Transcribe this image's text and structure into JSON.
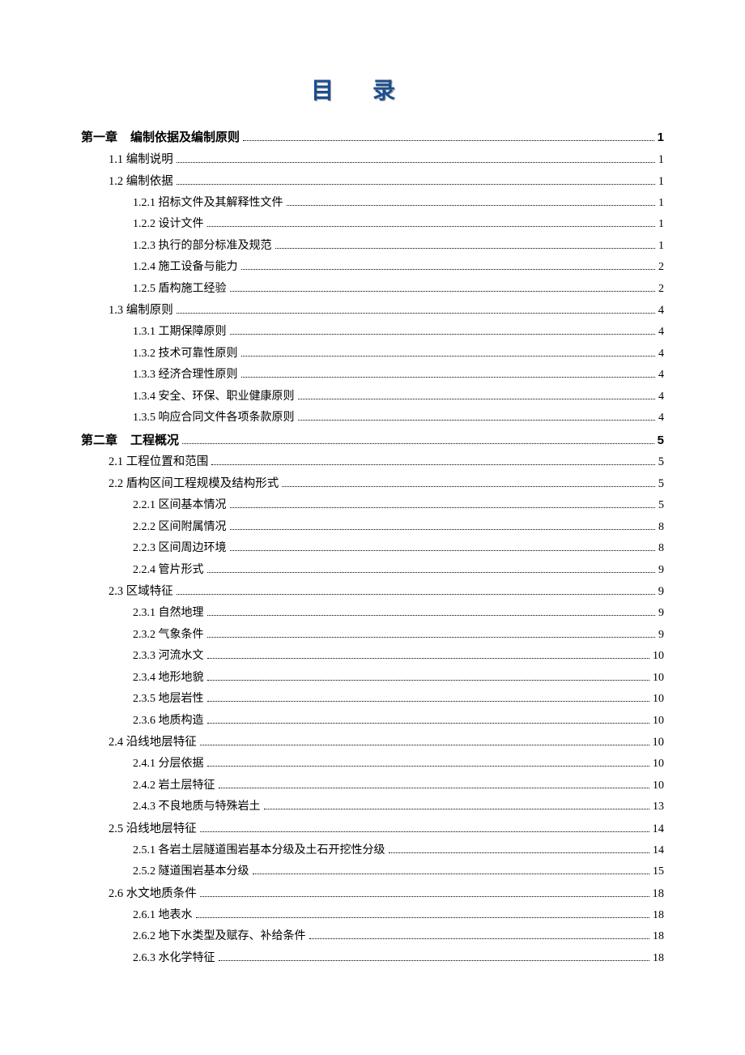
{
  "title": "目录",
  "title_color": "#1b4f8f",
  "title_shadow": "#a0a0a0",
  "colors": {
    "text": "#000000",
    "background": "#ffffff",
    "leader": "#000000"
  },
  "typography": {
    "title_fontsize": 28,
    "level1_fontsize": 15,
    "level2_fontsize": 14.5,
    "level3_fontsize": 14,
    "title_font": "SimHei",
    "body_font": "SimSun",
    "title_letter_spacing": 48
  },
  "layout": {
    "indent_level1": 0,
    "indent_level2": 34,
    "indent_level3": 64,
    "line_spacing": 12.5
  },
  "entries": [
    {
      "level": 1,
      "chapter": "第一章",
      "text": "编制依据及编制原则",
      "page": "1"
    },
    {
      "level": 2,
      "text": "1.1 编制说明",
      "page": "1"
    },
    {
      "level": 2,
      "text": "1.2 编制依据",
      "page": "1"
    },
    {
      "level": 3,
      "text": "1.2.1 招标文件及其解释性文件",
      "page": "1"
    },
    {
      "level": 3,
      "text": "1.2.2 设计文件",
      "page": "1"
    },
    {
      "level": 3,
      "text": "1.2.3 执行的部分标准及规范",
      "page": "1"
    },
    {
      "level": 3,
      "text": "1.2.4 施工设备与能力",
      "page": "2"
    },
    {
      "level": 3,
      "text": "1.2.5 盾构施工经验",
      "page": "2"
    },
    {
      "level": 2,
      "text": "1.3 编制原则",
      "page": "4"
    },
    {
      "level": 3,
      "text": "1.3.1 工期保障原则",
      "page": "4"
    },
    {
      "level": 3,
      "text": "1.3.2 技术可靠性原则",
      "page": "4"
    },
    {
      "level": 3,
      "text": "1.3.3 经济合理性原则",
      "page": "4"
    },
    {
      "level": 3,
      "text": "1.3.4 安全、环保、职业健康原则",
      "page": "4"
    },
    {
      "level": 3,
      "text": "1.3.5 响应合同文件各项条款原则",
      "page": "4"
    },
    {
      "level": 1,
      "chapter": "第二章",
      "text": "工程概况",
      "page": "5"
    },
    {
      "level": 2,
      "text": "2.1 工程位置和范围",
      "page": "5"
    },
    {
      "level": 2,
      "text": "2.2 盾构区间工程规模及结构形式",
      "page": "5"
    },
    {
      "level": 3,
      "text": "2.2.1 区间基本情况",
      "page": "5"
    },
    {
      "level": 3,
      "text": "2.2.2 区间附属情况",
      "page": "8"
    },
    {
      "level": 3,
      "text": "2.2.3 区间周边环境",
      "page": "8"
    },
    {
      "level": 3,
      "text": "2.2.4 管片形式",
      "page": "9"
    },
    {
      "level": 2,
      "text": "2.3 区域特征",
      "page": "9"
    },
    {
      "level": 3,
      "text": "2.3.1 自然地理",
      "page": "9"
    },
    {
      "level": 3,
      "text": "2.3.2 气象条件",
      "page": "9"
    },
    {
      "level": 3,
      "text": "2.3.3 河流水文",
      "page": "10"
    },
    {
      "level": 3,
      "text": "2.3.4 地形地貌",
      "page": "10"
    },
    {
      "level": 3,
      "text": "2.3.5 地层岩性",
      "page": "10"
    },
    {
      "level": 3,
      "text": "2.3.6 地质构造",
      "page": "10"
    },
    {
      "level": 2,
      "text": "2.4 沿线地层特征",
      "page": "10"
    },
    {
      "level": 3,
      "text": "2.4.1 分层依据",
      "page": "10"
    },
    {
      "level": 3,
      "text": "2.4.2 岩土层特征",
      "page": "10"
    },
    {
      "level": 3,
      "text": "2.4.3 不良地质与特殊岩土",
      "page": "13"
    },
    {
      "level": 2,
      "text": "2.5 沿线地层特征",
      "page": "14"
    },
    {
      "level": 3,
      "text": "2.5.1 各岩土层隧道围岩基本分级及土石开挖性分级",
      "page": "14"
    },
    {
      "level": 3,
      "text": "2.5.2 隧道围岩基本分级",
      "page": "15"
    },
    {
      "level": 2,
      "text": "2.6 水文地质条件",
      "page": "18"
    },
    {
      "level": 3,
      "text": "2.6.1 地表水",
      "page": "18"
    },
    {
      "level": 3,
      "text": "2.6.2 地下水类型及赋存、补给条件",
      "page": "18"
    },
    {
      "level": 3,
      "text": "2.6.3 水化学特征",
      "page": "18"
    }
  ]
}
